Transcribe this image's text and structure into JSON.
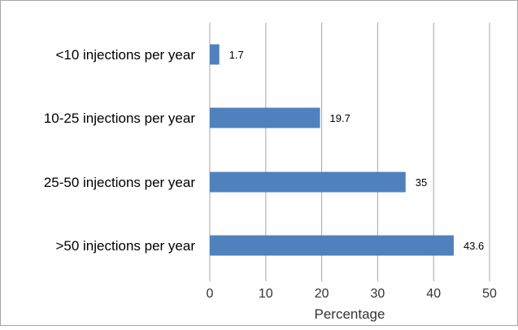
{
  "chart_data": {
    "type": "bar",
    "orientation": "horizontal",
    "title": "",
    "xlabel": "Percentage",
    "ylabel": "",
    "categories": [
      "<10 injections per year",
      "10-25 injections per year",
      "25-50 injections per year",
      ">50 injections per year"
    ],
    "values": [
      1.7,
      19.7,
      35,
      43.6
    ],
    "data_labels": [
      "1.7",
      "19.7",
      "35",
      "43.6"
    ],
    "xlim": [
      0,
      50
    ],
    "xticks": [
      "0",
      "10",
      "20",
      "30",
      "40",
      "50"
    ],
    "grid": "vertical",
    "legend": "none",
    "bar_color": "#4f81bd",
    "gridline_color": "#a6a6a6",
    "border_color": "#a6a6a6"
  }
}
